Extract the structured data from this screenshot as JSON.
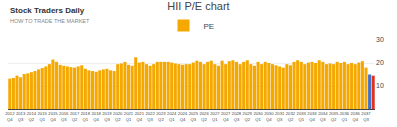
{
  "chart_data": {
    "type": "bar",
    "title": "HII P/E chart",
    "annotations": [
      "Stock Traders Daily",
      "HOW TO TRADE THE MARKET"
    ],
    "categories": [
      "2012\nQ4",
      null,
      null,
      "2013\nQ3",
      null,
      null,
      "2014\nQ2",
      null,
      null,
      "2015\nQ1",
      null,
      null,
      "2015\nQ4",
      null,
      null,
      "2016\nQ3",
      null,
      null,
      "2017\nQ2",
      null,
      null,
      "2018\nQ1",
      null,
      null,
      "2018\nQ4",
      null,
      null,
      "2019\nQ3",
      null,
      null,
      "2020\nQ2",
      null,
      null,
      "2021\nQ1",
      null,
      null,
      "2021\nQ4",
      null,
      null,
      "2022\nQ3",
      null,
      null,
      "2023\nQ2",
      null,
      null,
      "2024\nQ1",
      null,
      null,
      "2024\nQ4",
      null,
      null,
      "2025\nQ3",
      null,
      null,
      "2026\nQ2",
      null,
      null,
      "2027\nQ1",
      null,
      null,
      "2027\nQ4",
      null,
      null,
      "2028\nQ3",
      null,
      null,
      "2029\nQ2",
      null,
      null,
      "2030\nQ1",
      null,
      null,
      "2030\nQ4",
      null,
      null,
      "2031\nQ3",
      null,
      null,
      "2032\nQ2",
      null,
      null,
      "2033\nQ1",
      null,
      null,
      "2033\nQ4",
      null,
      null,
      "2034\nQ3",
      null,
      null,
      "2035\nQ2",
      null,
      null,
      "2036\nQ1",
      null,
      null,
      "2036\nQ4",
      null,
      null,
      "2037\nQ3",
      null,
      null
    ],
    "series": [
      {
        "name": "PE",
        "values": [
          13.2,
          13.5,
          14.5,
          13.8,
          15.2,
          15.5,
          16.0,
          16.5,
          17.2,
          17.8,
          18.5,
          19.5,
          21.5,
          20.5,
          19.2,
          18.8,
          18.5,
          18.2,
          18.0,
          18.5,
          19.0,
          17.5,
          16.8,
          16.5,
          16.2,
          16.8,
          17.2,
          17.5,
          16.8,
          16.5,
          19.5,
          19.8,
          20.5,
          19.2,
          18.8,
          22.5,
          20.2,
          20.5,
          19.5,
          18.8,
          19.5,
          20.5,
          20.5,
          20.5,
          20.5,
          20.2,
          19.8,
          19.5,
          19.2,
          19.5,
          19.5,
          20.2,
          21.0,
          20.5,
          19.5,
          20.5,
          21.0,
          19.5,
          18.8,
          21.0,
          19.5,
          20.8,
          21.2,
          20.5,
          19.5,
          20.5,
          21.2,
          19.5,
          18.8,
          20.5,
          19.5,
          20.5,
          20.0,
          19.5,
          19.0,
          18.5,
          18.0,
          19.5,
          19.0,
          20.5,
          21.2,
          20.5,
          19.5,
          20.2,
          20.5,
          20.0,
          21.2,
          20.5,
          19.5,
          19.8,
          19.5,
          20.5,
          20.0,
          20.5,
          19.5,
          20.0,
          19.5,
          20.2,
          20.8,
          18.0,
          15.0,
          14.5
        ],
        "colors": [
          "#F5A800",
          "#F5A800",
          "#F5A800",
          "#F5A800",
          "#F5A800",
          "#F5A800",
          "#F5A800",
          "#F5A800",
          "#F5A800",
          "#F5A800",
          "#F5A800",
          "#F5A800",
          "#F5A800",
          "#F5A800",
          "#F5A800",
          "#F5A800",
          "#F5A800",
          "#F5A800",
          "#F5A800",
          "#F5A800",
          "#F5A800",
          "#F5A800",
          "#F5A800",
          "#F5A800",
          "#F5A800",
          "#F5A800",
          "#F5A800",
          "#F5A800",
          "#F5A800",
          "#F5A800",
          "#F5A800",
          "#F5A800",
          "#F5A800",
          "#F5A800",
          "#F5A800",
          "#F5A800",
          "#F5A800",
          "#F5A800",
          "#F5A800",
          "#F5A800",
          "#F5A800",
          "#F5A800",
          "#F5A800",
          "#F5A800",
          "#F5A800",
          "#F5A800",
          "#F5A800",
          "#F5A800",
          "#F5A800",
          "#F5A800",
          "#F5A800",
          "#F5A800",
          "#F5A800",
          "#F5A800",
          "#F5A800",
          "#F5A800",
          "#F5A800",
          "#F5A800",
          "#F5A800",
          "#F5A800",
          "#F5A800",
          "#F5A800",
          "#F5A800",
          "#F5A800",
          "#F5A800",
          "#F5A800",
          "#F5A800",
          "#F5A800",
          "#F5A800",
          "#F5A800",
          "#F5A800",
          "#F5A800",
          "#F5A800",
          "#F5A800",
          "#F5A800",
          "#F5A800",
          "#F5A800",
          "#F5A800",
          "#F5A800",
          "#F5A800",
          "#F5A800",
          "#F5A800",
          "#F5A800",
          "#F5A800",
          "#F5A800",
          "#F5A800",
          "#F5A800",
          "#F5A800",
          "#F5A800",
          "#F5A800",
          "#F5A800",
          "#F5A800",
          "#F5A800",
          "#F5A800",
          "#F5A800",
          "#F5A800",
          "#F5A800",
          "#F5A800",
          "#F5A800",
          "#F5A800",
          "#4472C4",
          "#E03020"
        ]
      }
    ],
    "ylim": [
      0,
      30
    ],
    "yticks": [
      10,
      20,
      30
    ],
    "grid": true,
    "legend": "top"
  }
}
